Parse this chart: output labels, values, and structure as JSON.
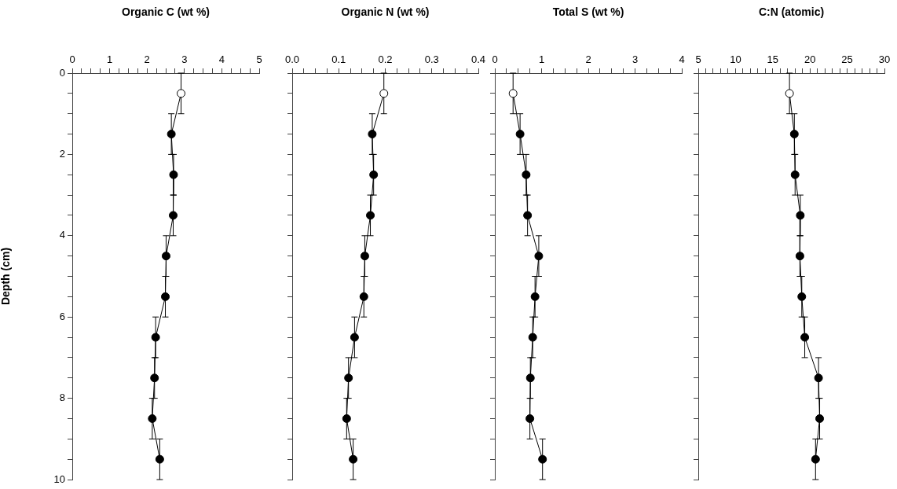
{
  "chart_data": [
    {
      "type": "line",
      "xlabel": "Organic C (wt %)",
      "ylabel": "Depth (cm)",
      "marker": "circle",
      "color": "#000000",
      "colors": [
        "#ffffff",
        "#000000",
        "#000000",
        "#000000",
        "#000000",
        "#000000",
        "#000000",
        "#000000",
        "#000000",
        "#000000"
      ],
      "x": [
        2.91,
        2.65,
        2.71,
        2.7,
        2.51,
        2.49,
        2.23,
        2.2,
        2.14,
        2.34
      ],
      "values": [
        0.5,
        1.5,
        2.5,
        3.5,
        4.5,
        5.5,
        6.5,
        7.5,
        8.5,
        9.5
      ],
      "errors": [
        0.5,
        0.5,
        0.5,
        0.5,
        0.5,
        0.5,
        0.5,
        0.5,
        0.5,
        0.5
      ],
      "xlim": [
        0,
        5
      ],
      "xticks": [
        0,
        {
          "value": 0.25,
          "label": null
        },
        {
          "value": 0.5,
          "label": null
        },
        {
          "value": 0.75,
          "label": null
        },
        1,
        {
          "value": 1.25,
          "label": null
        },
        {
          "value": 1.5,
          "label": null
        },
        {
          "value": 1.75,
          "label": null
        },
        2,
        {
          "value": 2.25,
          "label": null
        },
        {
          "value": 2.5,
          "label": null
        },
        {
          "value": 2.75,
          "label": null
        },
        3,
        {
          "value": 3.25,
          "label": null
        },
        {
          "value": 3.5,
          "label": null
        },
        {
          "value": 3.75,
          "label": null
        },
        4,
        {
          "value": 4.25,
          "label": null
        },
        {
          "value": 4.5,
          "label": null
        },
        {
          "value": 4.75,
          "label": null
        },
        5
      ],
      "ylim": [
        10,
        0
      ],
      "yticks": [
        0,
        {
          "value": 0.5,
          "label": null
        },
        {
          "value": 1,
          "label": null
        },
        {
          "value": 1.5,
          "label": null
        },
        2,
        {
          "value": 2.5,
          "label": null
        },
        {
          "value": 3,
          "label": null
        },
        {
          "value": 3.5,
          "label": null
        },
        4,
        {
          "value": 4.5,
          "label": null
        },
        {
          "value": 5,
          "label": null
        },
        {
          "value": 5.5,
          "label": null
        },
        6,
        {
          "value": 6.5,
          "label": null
        },
        {
          "value": 7,
          "label": null
        },
        {
          "value": 7.5,
          "label": null
        },
        8,
        {
          "value": 8.5,
          "label": null
        },
        {
          "value": 9,
          "label": null
        },
        {
          "value": 9.5,
          "label": null
        },
        10
      ]
    },
    {
      "type": "line",
      "xlabel": "Organic N (wt %)",
      "marker": "circle",
      "color": "#000000",
      "tick_labels": "x",
      "colors": [
        "#ffffff",
        "#000000",
        "#000000",
        "#000000",
        "#000000",
        "#000000",
        "#000000",
        "#000000",
        "#000000",
        "#000000"
      ],
      "x": [
        0.197,
        0.172,
        0.175,
        0.168,
        0.156,
        0.154,
        0.134,
        0.121,
        0.117,
        0.131
      ],
      "values": [
        0.5,
        1.5,
        2.5,
        3.5,
        4.5,
        5.5,
        6.5,
        7.5,
        8.5,
        9.5
      ],
      "errors": [
        0.5,
        0.5,
        0.5,
        0.5,
        0.5,
        0.5,
        0.5,
        0.5,
        0.5,
        0.5
      ],
      "xlim": [
        0,
        0.4
      ],
      "xticks": [
        {
          "value": 0,
          "label": "0.0"
        },
        {
          "value": 0.025,
          "label": null
        },
        {
          "value": 0.05,
          "label": null
        },
        {
          "value": 0.075,
          "label": null
        },
        0.1,
        {
          "value": 0.125,
          "label": null
        },
        {
          "value": 0.15,
          "label": null
        },
        {
          "value": 0.175,
          "label": null
        },
        0.2,
        {
          "value": 0.225,
          "label": null
        },
        {
          "value": 0.25,
          "label": null
        },
        {
          "value": 0.275,
          "label": null
        },
        0.3,
        {
          "value": 0.325,
          "label": null
        },
        {
          "value": 0.35,
          "label": null
        },
        {
          "value": 0.375,
          "label": null
        },
        0.4
      ],
      "ylim": [
        10,
        0
      ],
      "yticks": [
        0,
        {
          "value": 0.5,
          "label": null
        },
        {
          "value": 1,
          "label": null
        },
        {
          "value": 1.5,
          "label": null
        },
        2,
        {
          "value": 2.5,
          "label": null
        },
        {
          "value": 3,
          "label": null
        },
        {
          "value": 3.5,
          "label": null
        },
        4,
        {
          "value": 4.5,
          "label": null
        },
        {
          "value": 5,
          "label": null
        },
        {
          "value": 5.5,
          "label": null
        },
        6,
        {
          "value": 6.5,
          "label": null
        },
        {
          "value": 7,
          "label": null
        },
        {
          "value": 7.5,
          "label": null
        },
        8,
        {
          "value": 8.5,
          "label": null
        },
        {
          "value": 9,
          "label": null
        },
        {
          "value": 9.5,
          "label": null
        },
        10
      ]
    },
    {
      "type": "line",
      "xlabel": "Total S (wt %)",
      "marker": "circle",
      "color": "#000000",
      "tick_labels": "x",
      "colors": [
        "#ffffff",
        "#000000",
        "#000000",
        "#000000",
        "#000000",
        "#000000",
        "#000000",
        "#000000",
        "#000000",
        "#000000"
      ],
      "x": [
        0.39,
        0.54,
        0.67,
        0.7,
        0.94,
        0.86,
        0.81,
        0.76,
        0.75,
        1.02
      ],
      "values": [
        0.5,
        1.5,
        2.5,
        3.5,
        4.5,
        5.5,
        6.5,
        7.5,
        8.5,
        9.5
      ],
      "errors": [
        0.5,
        0.5,
        0.5,
        0.5,
        0.5,
        0.5,
        0.5,
        0.5,
        0.5,
        0.5
      ],
      "xlim": [
        0,
        4
      ],
      "xticks": [
        0,
        {
          "value": 0.25,
          "label": null
        },
        {
          "value": 0.5,
          "label": null
        },
        {
          "value": 0.75,
          "label": null
        },
        1,
        {
          "value": 1.25,
          "label": null
        },
        {
          "value": 1.5,
          "label": null
        },
        {
          "value": 1.75,
          "label": null
        },
        2,
        {
          "value": 2.25,
          "label": null
        },
        {
          "value": 2.5,
          "label": null
        },
        {
          "value": 2.75,
          "label": null
        },
        3,
        {
          "value": 3.25,
          "label": null
        },
        {
          "value": 3.5,
          "label": null
        },
        {
          "value": 3.75,
          "label": null
        },
        4
      ],
      "ylim": [
        10,
        0
      ],
      "yticks": [
        0,
        {
          "value": 0.5,
          "label": null
        },
        {
          "value": 1,
          "label": null
        },
        {
          "value": 1.5,
          "label": null
        },
        2,
        {
          "value": 2.5,
          "label": null
        },
        {
          "value": 3,
          "label": null
        },
        {
          "value": 3.5,
          "label": null
        },
        4,
        {
          "value": 4.5,
          "label": null
        },
        {
          "value": 5,
          "label": null
        },
        {
          "value": 5.5,
          "label": null
        },
        6,
        {
          "value": 6.5,
          "label": null
        },
        {
          "value": 7,
          "label": null
        },
        {
          "value": 7.5,
          "label": null
        },
        8,
        {
          "value": 8.5,
          "label": null
        },
        {
          "value": 9,
          "label": null
        },
        {
          "value": 9.5,
          "label": null
        },
        10
      ]
    },
    {
      "type": "line",
      "xlabel": "C:N (atomic)",
      "marker": "circle",
      "color": "#000000",
      "tick_labels": "x",
      "colors": [
        "#ffffff",
        "#000000",
        "#000000",
        "#000000",
        "#000000",
        "#000000",
        "#000000",
        "#000000",
        "#000000",
        "#000000"
      ],
      "x": [
        17.25,
        17.9,
        18.0,
        18.7,
        18.65,
        18.9,
        19.3,
        21.15,
        21.3,
        20.75
      ],
      "values": [
        0.5,
        1.5,
        2.5,
        3.5,
        4.5,
        5.5,
        6.5,
        7.5,
        8.5,
        9.5
      ],
      "errors": [
        0.5,
        0.5,
        0.5,
        0.5,
        0.5,
        0.5,
        0.5,
        0.5,
        0.5,
        0.5
      ],
      "xlim": [
        5,
        30
      ],
      "xticks": [
        5,
        {
          "value": 6,
          "label": null
        },
        {
          "value": 7,
          "label": null
        },
        {
          "value": 8,
          "label": null
        },
        {
          "value": 9,
          "label": null
        },
        10,
        {
          "value": 11,
          "label": null
        },
        {
          "value": 12,
          "label": null
        },
        {
          "value": 13,
          "label": null
        },
        {
          "value": 14,
          "label": null
        },
        15,
        {
          "value": 16,
          "label": null
        },
        {
          "value": 17,
          "label": null
        },
        {
          "value": 18,
          "label": null
        },
        {
          "value": 19,
          "label": null
        },
        20,
        {
          "value": 21,
          "label": null
        },
        {
          "value": 22,
          "label": null
        },
        {
          "value": 23,
          "label": null
        },
        {
          "value": 24,
          "label": null
        },
        25,
        {
          "value": 26,
          "label": null
        },
        {
          "value": 27,
          "label": null
        },
        {
          "value": 28,
          "label": null
        },
        {
          "value": 29,
          "label": null
        },
        30
      ],
      "ylim": [
        10,
        0
      ],
      "yticks": [
        0,
        {
          "value": 0.5,
          "label": null
        },
        {
          "value": 1,
          "label": null
        },
        {
          "value": 1.5,
          "label": null
        },
        2,
        {
          "value": 2.5,
          "label": null
        },
        {
          "value": 3,
          "label": null
        },
        {
          "value": 3.5,
          "label": null
        },
        4,
        {
          "value": 4.5,
          "label": null
        },
        {
          "value": 5,
          "label": null
        },
        {
          "value": 5.5,
          "label": null
        },
        6,
        {
          "value": 6.5,
          "label": null
        },
        {
          "value": 7,
          "label": null
        },
        {
          "value": 7.5,
          "label": null
        },
        8,
        {
          "value": 8.5,
          "label": null
        },
        {
          "value": 9,
          "label": null
        },
        {
          "value": 9.5,
          "label": null
        },
        10
      ]
    }
  ]
}
